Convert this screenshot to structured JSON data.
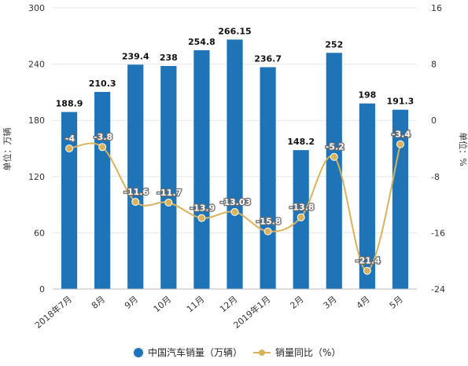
{
  "chart_data": {
    "type": "bar",
    "categories": [
      "2018年7月",
      "8月",
      "9月",
      "10月",
      "11月",
      "12月",
      "2019年1月",
      "2月",
      "3月",
      "4月",
      "5月"
    ],
    "series": [
      {
        "name": "中国汽车销量（万辆）",
        "kind": "bar",
        "axis": "left",
        "color": "#1f73b7",
        "values": [
          188.9,
          210.3,
          239.4,
          238,
          254.8,
          266.15,
          236.7,
          148.2,
          252,
          198,
          191.3
        ],
        "labels": [
          "188.9",
          "210.3",
          "239.4",
          "238",
          "254.8",
          "266.15",
          "236.7",
          "148.2",
          "252",
          "198",
          "191.3"
        ]
      },
      {
        "name": "销量同比（%）",
        "kind": "line",
        "axis": "right",
        "color": "#d9b25c",
        "values": [
          -4,
          -3.8,
          -11.6,
          -11.7,
          -13.9,
          -13.03,
          -15.8,
          -13.8,
          -5.2,
          -21.4,
          -3.4
        ],
        "labels": [
          "-4",
          "-3.8",
          "-11.6",
          "-11.7",
          "-13.9",
          "-13.03",
          "-15.8",
          "-13.8",
          "-5.2",
          "-21.4",
          "-3.4"
        ]
      }
    ],
    "ylabel": "单位：万辆",
    "y2label": "单位：%",
    "ylim": [
      0,
      300
    ],
    "yticks": [
      0,
      60,
      120,
      180,
      240,
      300
    ],
    "y2lim": [
      -24,
      16
    ],
    "y2ticks": [
      -24,
      -16,
      -8,
      0,
      8,
      16
    ],
    "grid": true,
    "legend": "bottom-center"
  }
}
